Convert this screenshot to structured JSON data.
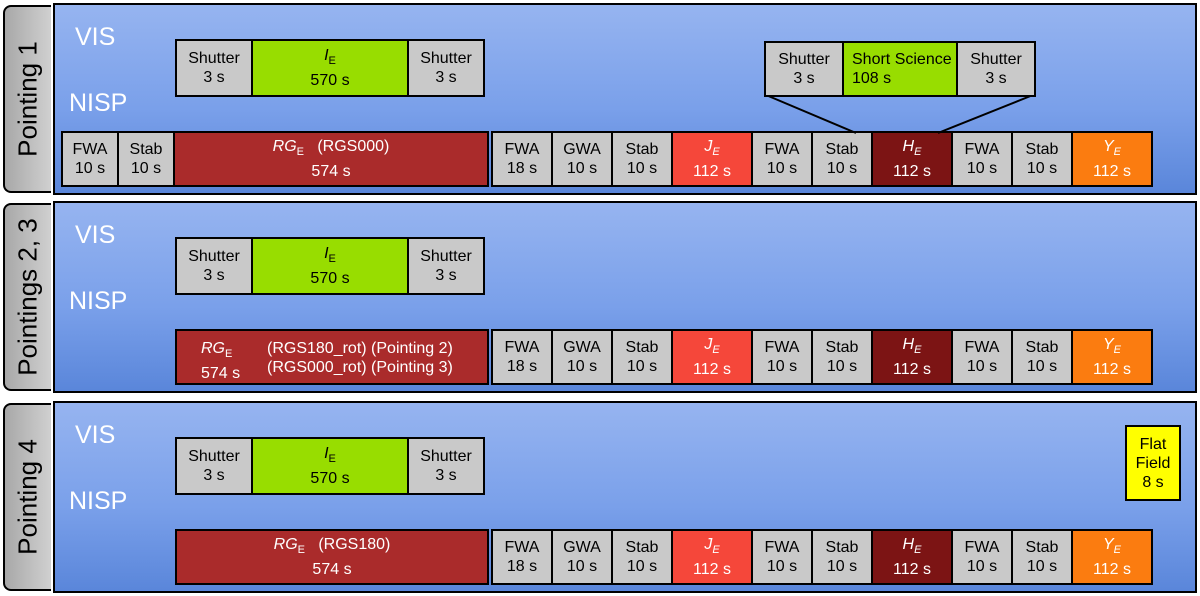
{
  "rows": [
    {
      "tab": "Pointing 1",
      "vis_label": "VIS",
      "nisp_label": "NISP",
      "vis": {
        "shutter_label": "Shutter",
        "shutter_time": "3 s",
        "ie_sym": "I",
        "ie_sub": "E",
        "ie_time": "570 s"
      },
      "rg": {
        "sym": "RG",
        "sub": "E",
        "mode": "(RGS000)",
        "time": "574 s"
      },
      "short_science": {
        "label": "Short Science",
        "time": "108 s"
      }
    },
    {
      "tab": "Pointings 2, 3",
      "vis_label": "VIS",
      "nisp_label": "NISP",
      "vis": {
        "shutter_label": "Shutter",
        "shutter_time": "3 s",
        "ie_sym": "I",
        "ie_sub": "E",
        "ie_time": "570 s"
      },
      "rg": {
        "sym": "RG",
        "sub": "E",
        "time": "574 s",
        "mode1": "(RGS180_rot) (Pointing 2)",
        "mode2": "(RGS000_rot) (Pointing 3)"
      }
    },
    {
      "tab": "Pointing 4",
      "vis_label": "VIS",
      "nisp_label": "NISP",
      "vis": {
        "shutter_label": "Shutter",
        "shutter_time": "3 s",
        "ie_sym": "I",
        "ie_sub": "E",
        "ie_time": "570 s"
      },
      "rg": {
        "sym": "RG",
        "sub": "E",
        "mode": "(RGS180)",
        "time": "574 s"
      },
      "flat_field": {
        "line1": "Flat",
        "line2": "Field",
        "time": "8 s"
      }
    }
  ],
  "pre_blocks": [
    {
      "label": "FWA",
      "time": "10 s"
    },
    {
      "label": "Stab",
      "time": "10 s"
    }
  ],
  "photometry": [
    {
      "kind": "gray",
      "label": "FWA",
      "time": "18 s"
    },
    {
      "kind": "gray",
      "label": "GWA",
      "time": "10 s"
    },
    {
      "kind": "gray",
      "label": "Stab",
      "time": "10 s"
    },
    {
      "kind": "je",
      "sym": "J",
      "sub": "E",
      "time": "112 s"
    },
    {
      "kind": "gray",
      "label": "FWA",
      "time": "10 s"
    },
    {
      "kind": "gray",
      "label": "Stab",
      "time": "10 s"
    },
    {
      "kind": "he",
      "sym": "H",
      "sub": "E",
      "time": "112 s"
    },
    {
      "kind": "gray",
      "label": "FWA",
      "time": "10 s"
    },
    {
      "kind": "gray",
      "label": "Stab",
      "time": "10 s"
    },
    {
      "kind": "ye",
      "sym": "Y",
      "sub": "E",
      "time": "112 s"
    }
  ],
  "colors": {
    "panel": "#7aa0ea",
    "gray_block": "#c9c9c9",
    "ie_green": "#98dd00",
    "rg_red": "#aa2b2b",
    "je_red": "#f5473a",
    "he_darkred": "#7c1414",
    "ye_orange": "#fb7c10",
    "flat_yellow": "#ffff00"
  }
}
